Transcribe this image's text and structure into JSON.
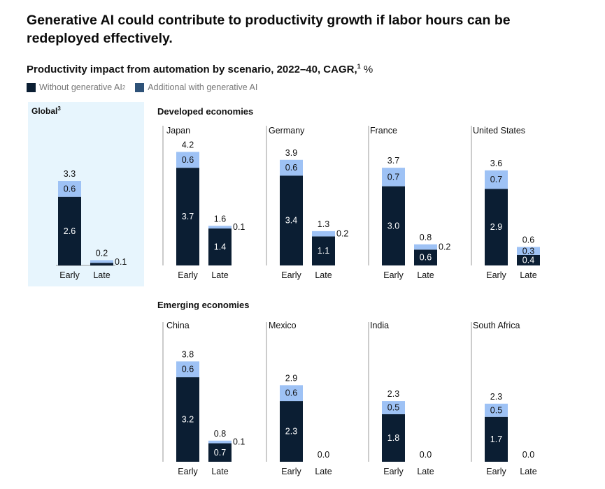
{
  "title": "Generative AI could contribute to productivity growth if labor hours can be redeployed effectively.",
  "subtitle": {
    "text": "Productivity impact from automation by scenario, 2022–40, CAGR,",
    "sup": "1",
    "unit": "%"
  },
  "legend": [
    {
      "label": "Without generative AI",
      "sup": "2",
      "color": "#0b1e33"
    },
    {
      "label": "Additional with generative AI",
      "sup": "",
      "color": "#2e5278"
    }
  ],
  "sections": {
    "global": {
      "label": "Global",
      "sup": "3"
    },
    "developed": "Developed economies",
    "emerging": "Emerging economies"
  },
  "colors": {
    "base": "#0b1e33",
    "additional": "#9ec2f5",
    "panel_bg": "#e7f5fd",
    "axis": "#9a9a9a"
  },
  "chart_data": {
    "type": "bar",
    "stacked": true,
    "title": "Productivity impact from automation by scenario, 2022–40, CAGR, %",
    "categories": [
      "Early",
      "Late"
    ],
    "series_names": [
      "Without generative AI",
      "Additional with generative AI"
    ],
    "ylim": [
      0,
      4.2
    ],
    "panels": [
      {
        "name": "Global",
        "group": "global",
        "base": [
          2.6,
          0.1
        ],
        "add": [
          0.6,
          0.1
        ],
        "total": [
          3.3,
          0.2
        ],
        "base_labels": [
          "2.6",
          "0.1"
        ],
        "add_labels": [
          "0.6",
          ""
        ],
        "total_labels": [
          "3.3",
          "0.2"
        ]
      },
      {
        "name": "Japan",
        "group": "developed",
        "base": [
          3.7,
          1.4
        ],
        "add": [
          0.6,
          0.1
        ],
        "total": [
          4.2,
          1.6
        ],
        "base_labels": [
          "3.7",
          "1.4"
        ],
        "add_labels": [
          "0.6",
          "0.1"
        ],
        "total_labels": [
          "4.2",
          "1.6"
        ]
      },
      {
        "name": "Germany",
        "group": "developed",
        "base": [
          3.4,
          1.1
        ],
        "add": [
          0.6,
          0.2
        ],
        "total": [
          3.9,
          1.3
        ],
        "base_labels": [
          "3.4",
          "1.1"
        ],
        "add_labels": [
          "0.6",
          "0.2"
        ],
        "total_labels": [
          "3.9",
          "1.3"
        ]
      },
      {
        "name": "France",
        "group": "developed",
        "base": [
          3.0,
          0.6
        ],
        "add": [
          0.7,
          0.2
        ],
        "total": [
          3.7,
          0.8
        ],
        "base_labels": [
          "3.0",
          "0.6"
        ],
        "add_labels": [
          "0.7",
          "0.2"
        ],
        "total_labels": [
          "3.7",
          "0.8"
        ]
      },
      {
        "name": "United States",
        "group": "developed",
        "base": [
          2.9,
          0.4
        ],
        "add": [
          0.7,
          0.3
        ],
        "total": [
          3.6,
          0.6
        ],
        "base_labels": [
          "2.9",
          "0.4"
        ],
        "add_labels": [
          "0.7",
          "0.3"
        ],
        "total_labels": [
          "3.6",
          "0.6"
        ]
      },
      {
        "name": "China",
        "group": "emerging",
        "base": [
          3.2,
          0.7
        ],
        "add": [
          0.6,
          0.1
        ],
        "total": [
          3.8,
          0.8
        ],
        "base_labels": [
          "3.2",
          "0.7"
        ],
        "add_labels": [
          "0.6",
          "0.1"
        ],
        "total_labels": [
          "3.8",
          "0.8"
        ]
      },
      {
        "name": "Mexico",
        "group": "emerging",
        "base": [
          2.3,
          0.0
        ],
        "add": [
          0.6,
          0.0
        ],
        "total": [
          2.9,
          0.0
        ],
        "base_labels": [
          "2.3",
          ""
        ],
        "add_labels": [
          "0.6",
          ""
        ],
        "total_labels": [
          "2.9",
          "0.0"
        ]
      },
      {
        "name": "India",
        "group": "emerging",
        "base": [
          1.8,
          0.0
        ],
        "add": [
          0.5,
          0.0
        ],
        "total": [
          2.3,
          0.0
        ],
        "base_labels": [
          "1.8",
          ""
        ],
        "add_labels": [
          "0.5",
          ""
        ],
        "total_labels": [
          "2.3",
          "0.0"
        ]
      },
      {
        "name": "South Africa",
        "group": "emerging",
        "base": [
          1.7,
          0.0
        ],
        "add": [
          0.5,
          0.0
        ],
        "total": [
          2.3,
          0.0
        ],
        "base_labels": [
          "1.7",
          ""
        ],
        "add_labels": [
          "0.5",
          ""
        ],
        "total_labels": [
          "2.3",
          "0.0"
        ]
      }
    ]
  }
}
